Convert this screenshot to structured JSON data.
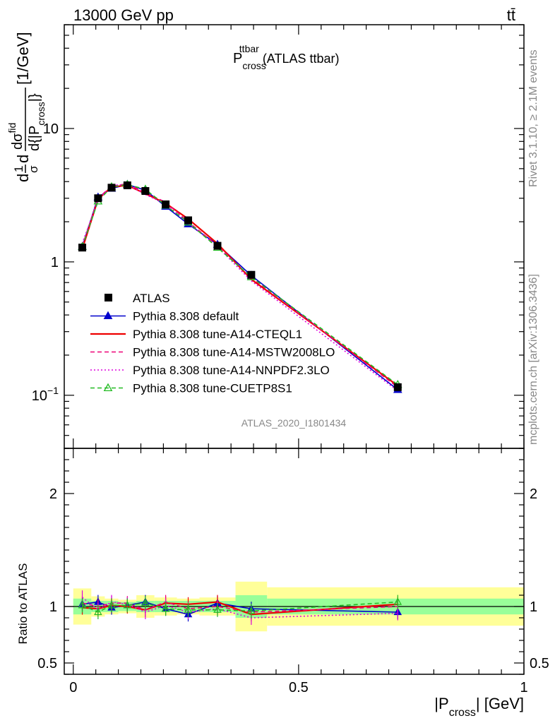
{
  "header": {
    "process": "13000 GeV pp",
    "final_state": "tt̄"
  },
  "side_text": {
    "rivet": "Rivet 3.1.10, ≥ 2.1M events",
    "mcplots": "mcplots.cern.ch [arXiv:1306.3436]"
  },
  "chart_data": [
    {
      "type": "line",
      "title_main": "P",
      "title_sub": "cross",
      "title_sup": "ttbar",
      "title_rest": " (ATLAS ttbar)",
      "ylabel": "d1/σdσ^fid/d{|P_cross|} [1/GeV]",
      "ylabel_parts": {
        "a": "d",
        "frac1_num": "1",
        "frac1_den": "σ",
        "b": "d",
        "frac2_num": "dσ",
        "frac2_num_sup": "fid",
        "frac2_den": "d{|P",
        "frac2_den_sub": "cross",
        "frac2_den_end": "|}",
        "unit": " [1/GeV]"
      },
      "yscale": "log",
      "ylim": [
        0.04,
        60
      ],
      "xlim": [
        -0.02,
        1.0
      ],
      "yticks": [
        {
          "v": 0.1,
          "base": "10",
          "exp": "−1"
        },
        {
          "v": 1,
          "base": "1",
          "exp": ""
        },
        {
          "v": 10,
          "base": "10",
          "exp": ""
        }
      ],
      "watermark": "ATLAS_2020_I1801434",
      "legend_placement": "center-left",
      "x": [
        0.02,
        0.055,
        0.085,
        0.12,
        0.16,
        0.205,
        0.255,
        0.32,
        0.395,
        0.72
      ],
      "x_bins": [
        0,
        0.04,
        0.07,
        0.1,
        0.14,
        0.18,
        0.23,
        0.28,
        0.36,
        0.43,
        1.0
      ],
      "data": {
        "name": "ATLAS",
        "values": [
          1.28,
          3.0,
          3.6,
          3.75,
          3.4,
          2.7,
          2.05,
          1.32,
          0.8,
          0.115
        ]
      },
      "series": [
        {
          "name": "Pythia 8.308 default",
          "color": "#0000cc",
          "style": "solid-triangle",
          "values": [
            1.3,
            3.05,
            3.55,
            3.8,
            3.45,
            2.6,
            1.92,
            1.35,
            0.79,
            0.11
          ]
        },
        {
          "name": "Pythia 8.308 tune-A14-CTEQL1",
          "color": "#ee0000",
          "style": "solid",
          "values": [
            1.25,
            2.95,
            3.65,
            3.75,
            3.25,
            2.75,
            2.1,
            1.37,
            0.74,
            0.118
          ]
        },
        {
          "name": "Pythia 8.308 tune-A14-MSTW2008LO",
          "color": "#ee0077",
          "style": "dashed",
          "values": [
            1.32,
            3.0,
            3.7,
            3.85,
            3.3,
            2.8,
            2.0,
            1.32,
            0.76,
            0.115
          ]
        },
        {
          "name": "Pythia 8.308 tune-A14-NNPDF2.3LO",
          "color": "#dd00dd",
          "style": "dotted",
          "values": [
            1.38,
            2.9,
            3.75,
            3.8,
            3.2,
            2.72,
            1.95,
            1.3,
            0.72,
            0.108
          ]
        },
        {
          "name": "Pythia 8.308 tune-CUETP8S1",
          "color": "#22bb22",
          "style": "dashed-open-triangle",
          "values": [
            1.3,
            2.85,
            3.65,
            3.8,
            3.5,
            2.65,
            1.98,
            1.28,
            0.77,
            0.12
          ]
        }
      ]
    },
    {
      "type": "line",
      "ylabel": "Ratio to ATLAS",
      "xlabel_main": "|P",
      "xlabel_sub": "cross",
      "xlabel_end": "| [GeV]",
      "ylim": [
        0.4,
        2.4
      ],
      "xlim": [
        -0.02,
        1.0
      ],
      "yticks": [
        {
          "v": 0.5,
          "label": "0.5"
        },
        {
          "v": 1,
          "label": "1"
        },
        {
          "v": 2,
          "label": "2"
        }
      ],
      "xticks": [
        {
          "v": 0,
          "label": "0"
        },
        {
          "v": 0.5,
          "label": "0.5"
        },
        {
          "v": 1,
          "label": "1"
        }
      ],
      "bands": [
        {
          "x0": 0,
          "x1": 0.04,
          "inner": 0.07,
          "outer": 0.16
        },
        {
          "x0": 0.04,
          "x1": 0.07,
          "inner": 0.05,
          "outer": 0.09
        },
        {
          "x0": 0.07,
          "x1": 0.1,
          "inner": 0.05,
          "outer": 0.07
        },
        {
          "x0": 0.1,
          "x1": 0.14,
          "inner": 0.04,
          "outer": 0.06
        },
        {
          "x0": 0.14,
          "x1": 0.18,
          "inner": 0.05,
          "outer": 0.1
        },
        {
          "x0": 0.18,
          "x1": 0.23,
          "inner": 0.05,
          "outer": 0.08
        },
        {
          "x0": 0.23,
          "x1": 0.28,
          "inner": 0.05,
          "outer": 0.07
        },
        {
          "x0": 0.28,
          "x1": 0.36,
          "inner": 0.05,
          "outer": 0.08
        },
        {
          "x0": 0.36,
          "x1": 0.43,
          "inner": 0.1,
          "outer": 0.22
        },
        {
          "x0": 0.43,
          "x1": 1.0,
          "inner": 0.07,
          "outer": 0.17
        }
      ],
      "ratios": [
        {
          "name": "Pythia 8.308 default",
          "values": [
            1.02,
            1.04,
            0.99,
            1.01,
            1.04,
            0.98,
            0.93,
            1.03,
            0.98,
            0.95
          ]
        },
        {
          "name": "Pythia 8.308 tune-A14-CTEQL1",
          "values": [
            0.99,
            0.98,
            1.01,
            1.0,
            0.97,
            1.03,
            1.02,
            1.04,
            0.93,
            1.02
          ]
        },
        {
          "name": "Pythia 8.308 tune-A14-MSTW2008LO",
          "values": [
            1.03,
            1.0,
            1.03,
            1.03,
            0.97,
            1.04,
            0.98,
            1.0,
            0.95,
            1.0
          ]
        },
        {
          "name": "Pythia 8.308 tune-A14-NNPDF2.3LO",
          "values": [
            1.08,
            0.97,
            1.04,
            1.02,
            0.95,
            1.01,
            0.95,
            0.98,
            0.9,
            0.94
          ]
        },
        {
          "name": "Pythia 8.308 tune-CUETP8S1",
          "values": [
            1.01,
            0.95,
            1.01,
            1.01,
            1.03,
            0.98,
            0.97,
            0.97,
            0.96,
            1.04
          ]
        }
      ]
    }
  ]
}
